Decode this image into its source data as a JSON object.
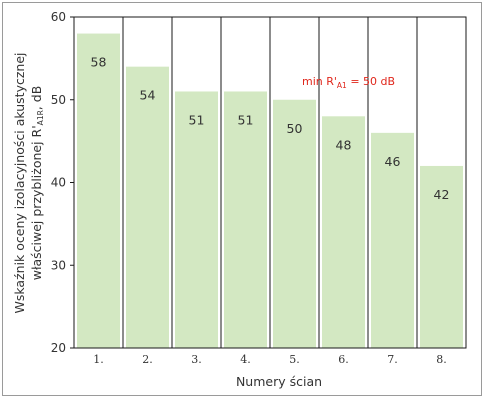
{
  "chart_data": {
    "type": "bar",
    "categories": [
      "1.",
      "2.",
      "3.",
      "4.",
      "5.",
      "6.",
      "7.",
      "8."
    ],
    "values": [
      58,
      54,
      51,
      51,
      50,
      48,
      46,
      42
    ],
    "data_labels": [
      "58",
      "54",
      "51",
      "51",
      "50",
      "48",
      "46",
      "42"
    ],
    "title": "",
    "xlabel": "Numery ścian",
    "ylabel_line1": "Wskaźnik oceny izolacyjności akustycznej",
    "ylabel_line2_prefix": "właściwej przybliżonej R'",
    "ylabel_line2_subscript": "A1R",
    "ylabel_line2_suffix": ", dB",
    "ylim": [
      20,
      60
    ],
    "yticks": [
      "20",
      "30",
      "40",
      "50",
      "60"
    ],
    "grid": false,
    "annotation": {
      "prefix": "min R'",
      "subscript": "A1",
      "suffix": " = 50 dB"
    },
    "bar_color": "#d3e8c2",
    "annotation_color": "#e0261b"
  }
}
